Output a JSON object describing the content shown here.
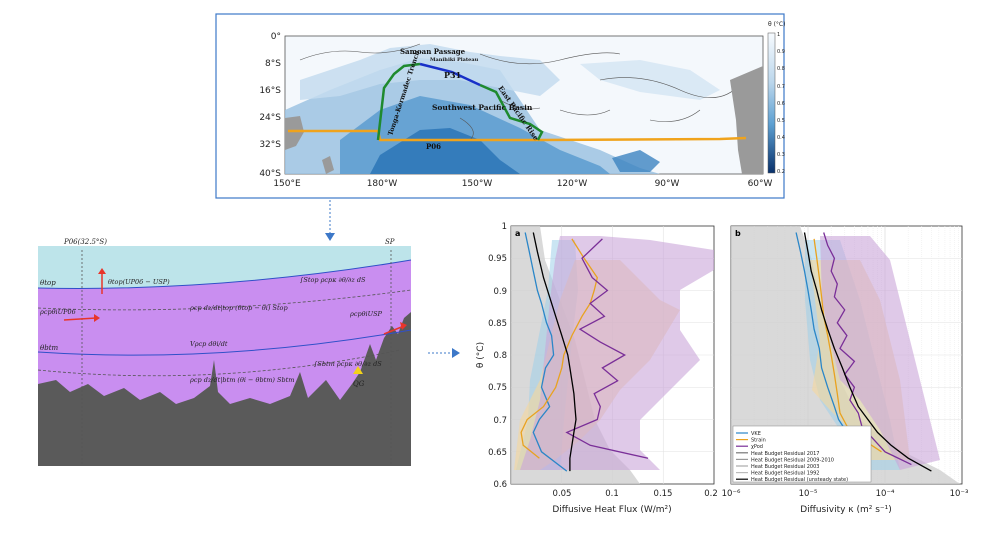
{
  "map": {
    "lat_ticks": [
      "0°",
      "8°S",
      "16°S",
      "24°S",
      "32°S",
      "40°S"
    ],
    "lon_ticks": [
      "150°E",
      "180°W",
      "150°W",
      "120°W",
      "90°W",
      "60°W"
    ],
    "labels": {
      "samoan": "Samoan Passage",
      "manihiki": "Manihiki Plateau",
      "p31": "P31",
      "epr": "East Pacific Rise",
      "swpb": "Southwest Pacific Basin",
      "tonga": "Tonga-Kermadec Trench",
      "p06": "P06"
    },
    "colorbar": {
      "title": "θ (°C)",
      "ticks": [
        "1",
        "0.9",
        "0.8",
        "0.7",
        "0.6",
        "0.5",
        "0.4",
        "0.3",
        "0.2"
      ]
    },
    "colors": {
      "section_p06": "#f0a31c",
      "section_p31": "#1830c8",
      "section_green": "#1e8a2e",
      "land": "#9a9a9a"
    }
  },
  "schematic": {
    "labels": {
      "p06": "P06(32.5°S)",
      "sp": "SP",
      "theta_top": "θtop",
      "theta_btm": "θbtm",
      "adv_top": "θtop(UP06 − USP)",
      "in_p06": "ρcpθiUP06",
      "out_sp": "ρcpθiUSP",
      "vol": "Vρcp dθi/dt",
      "top_term": "ρcp dz/dt|top (θtop − θi) Stop",
      "btm_term": "ρcp dz/dt|btm (θi − θbtm) Sbtm",
      "int_top": "∫Stop ρcpκ ∂θ/∂z dS",
      "int_btm": "∫Sbtm ρcpκ ∂θ/∂z dS",
      "qg": "QG"
    },
    "colors": {
      "water": "#bde4ea",
      "layer": "#c98ef0",
      "seafloor": "#5a5a5a",
      "arrow": "#e8352a",
      "geo": "#f2d21a"
    }
  },
  "chart_data": [
    {
      "type": "line",
      "panel": "a",
      "xlabel": "Diffusive Heat Flux (W/m²)",
      "ylabel": "θ (°C)",
      "xlim": [
        0,
        0.2
      ],
      "ylim": [
        0.6,
        1.0
      ],
      "x_ticks": [
        "0.05",
        "0.1",
        "0.15",
        "0.2"
      ],
      "y_ticks": [
        "0.6",
        "0.65",
        "0.7",
        "0.75",
        "0.8",
        "0.85",
        "0.9",
        "0.95",
        "1"
      ],
      "series": [
        {
          "name": "VKE",
          "color": "#2a86c8",
          "y": [
            0.62,
            0.65,
            0.68,
            0.7,
            0.72,
            0.75,
            0.78,
            0.8,
            0.83,
            0.85,
            0.88,
            0.9,
            0.93,
            0.96,
            0.99
          ],
          "x": [
            0.055,
            0.03,
            0.022,
            0.028,
            0.038,
            0.03,
            0.034,
            0.042,
            0.04,
            0.035,
            0.03,
            0.026,
            0.022,
            0.018,
            0.014
          ]
        },
        {
          "name": "Strain",
          "color": "#e9a21f",
          "y": [
            0.64,
            0.66,
            0.68,
            0.7,
            0.72,
            0.75,
            0.78,
            0.8,
            0.83,
            0.86,
            0.88,
            0.9,
            0.92,
            0.95,
            0.98
          ],
          "x": [
            0.028,
            0.012,
            0.01,
            0.016,
            0.032,
            0.044,
            0.05,
            0.052,
            0.06,
            0.07,
            0.078,
            0.082,
            0.085,
            0.072,
            0.06
          ]
        },
        {
          "name": "χPod",
          "color": "#7a2f98",
          "y": [
            0.64,
            0.66,
            0.68,
            0.7,
            0.72,
            0.74,
            0.76,
            0.78,
            0.8,
            0.82,
            0.84,
            0.86,
            0.88,
            0.9,
            0.92,
            0.95,
            0.98
          ],
          "x": [
            0.135,
            0.078,
            0.055,
            0.085,
            0.088,
            0.082,
            0.105,
            0.09,
            0.112,
            0.088,
            0.068,
            0.092,
            0.078,
            0.095,
            0.08,
            0.07,
            0.09
          ]
        },
        {
          "name": "Heat Budget Residual (unsteady state)",
          "color": "#000000",
          "y": [
            0.62,
            0.64,
            0.66,
            0.68,
            0.7,
            0.72,
            0.74,
            0.76,
            0.78,
            0.8,
            0.83,
            0.86,
            0.89,
            0.92,
            0.96,
            0.99
          ],
          "x": [
            0.058,
            0.058,
            0.06,
            0.062,
            0.064,
            0.063,
            0.062,
            0.06,
            0.058,
            0.056,
            0.05,
            0.044,
            0.038,
            0.032,
            0.026,
            0.022
          ]
        }
      ]
    },
    {
      "type": "line",
      "panel": "b",
      "xlabel": "Diffusivity κ (m² s⁻¹)",
      "ylabel": "",
      "xscale": "log",
      "xlim": [
        1e-06,
        0.001
      ],
      "ylim": [
        0.6,
        1.0
      ],
      "x_ticks": [
        "10⁻⁶",
        "10⁻⁵",
        "10⁻⁴",
        "10⁻³"
      ],
      "legend_position": "bottom-right",
      "legend": [
        "VKE",
        "Strain",
        "χPod",
        "Heat Budget Residual 2017",
        "Heat Budget Residual 2009-2010",
        "Heat Budget Residual 2003",
        "Heat Budget Residual 1992",
        "Heat Budget Residual (unsteady state)"
      ],
      "series": [
        {
          "name": "VKE",
          "color": "#2a86c8",
          "y": [
            0.64,
            0.66,
            0.68,
            0.7,
            0.72,
            0.75,
            0.78,
            0.81,
            0.84,
            0.87,
            0.9,
            0.93,
            0.96,
            0.99
          ],
          "x": [
            6e-05,
            4.2e-05,
            3.2e-05,
            2.5e-05,
            2.2e-05,
            1.8e-05,
            1.5e-05,
            1.4e-05,
            1.2e-05,
            1.1e-05,
            1e-05,
            9e-06,
            8e-06,
            7e-06
          ]
        },
        {
          "name": "Strain",
          "color": "#e9a21f",
          "y": [
            0.65,
            0.67,
            0.69,
            0.71,
            0.74,
            0.77,
            0.8,
            0.83,
            0.86,
            0.89,
            0.92,
            0.95,
            0.98
          ],
          "x": [
            9e-05,
            5e-05,
            3.2e-05,
            2.6e-05,
            2.4e-05,
            2.2e-05,
            2e-05,
            1.8e-05,
            1.6e-05,
            1.5e-05,
            1.4e-05,
            1.3e-05,
            1.2e-05
          ]
        },
        {
          "name": "χPod",
          "color": "#7a2f98",
          "y": [
            0.63,
            0.65,
            0.67,
            0.69,
            0.71,
            0.73,
            0.75,
            0.77,
            0.79,
            0.81,
            0.83,
            0.85,
            0.87,
            0.89,
            0.91,
            0.93,
            0.95,
            0.97,
            0.99
          ],
          "x": [
            0.00022,
            0.0001,
            7e-05,
            5e-05,
            4.5e-05,
            3.5e-05,
            4e-05,
            3e-05,
            4e-05,
            2.6e-05,
            3.2e-05,
            2.4e-05,
            3e-05,
            2.2e-05,
            2.4e-05,
            2e-05,
            2.2e-05,
            1.8e-05,
            1.6e-05
          ]
        },
        {
          "name": "Heat Budget Residual (unsteady state)",
          "color": "#000000",
          "y": [
            0.62,
            0.64,
            0.66,
            0.68,
            0.7,
            0.72,
            0.75,
            0.78,
            0.81,
            0.84,
            0.87,
            0.9,
            0.93,
            0.96,
            0.99
          ],
          "x": [
            0.0004,
            0.0002,
            0.00012,
            8e-05,
            6e-05,
            4.5e-05,
            3.5e-05,
            2.8e-05,
            2.2e-05,
            1.8e-05,
            1.5e-05,
            1.3e-05,
            1.1e-05,
            1e-05,
            9e-06
          ]
        }
      ]
    }
  ]
}
